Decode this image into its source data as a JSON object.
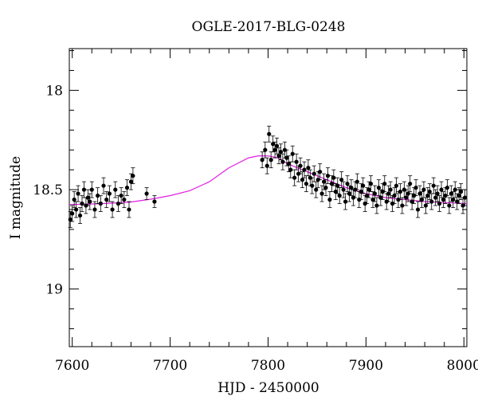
{
  "chart_data": {
    "type": "scatter",
    "title": "OGLE-2017-BLG-0248",
    "xlabel": "HJD - 2450000",
    "ylabel": "I magnitude",
    "xlim": [
      7597,
      8003
    ],
    "ylim": [
      19.29,
      17.79
    ],
    "y_inverted": true,
    "x_ticks": [
      7600,
      7700,
      7800,
      7900,
      8000
    ],
    "y_ticks": [
      18,
      18.5,
      19
    ],
    "grid": false,
    "colors": {
      "points": "#000000",
      "model": "#e020e0"
    },
    "series": [
      {
        "kind": "points_with_errorbars",
        "x": [
          7598,
          7600,
          7602,
          7604,
          7606,
          7608,
          7610,
          7612,
          7614,
          7616,
          7618,
          7620,
          7623,
          7626,
          7629,
          7632,
          7635,
          7638,
          7641,
          7644,
          7647,
          7650,
          7653,
          7656,
          7658,
          7660,
          7662,
          7676,
          7684,
          7794,
          7797,
          7799,
          7801,
          7803,
          7805,
          7807,
          7809,
          7811,
          7813,
          7815,
          7817,
          7819,
          7821,
          7823,
          7825,
          7827,
          7829,
          7831,
          7833,
          7835,
          7837,
          7839,
          7841,
          7843,
          7845,
          7847,
          7849,
          7851,
          7853,
          7855,
          7857,
          7859,
          7861,
          7863,
          7865,
          7867,
          7869,
          7871,
          7873,
          7875,
          7877,
          7879,
          7881,
          7883,
          7885,
          7887,
          7889,
          7891,
          7893,
          7895,
          7897,
          7899,
          7901,
          7903,
          7905,
          7907,
          7909,
          7911,
          7913,
          7915,
          7917,
          7919,
          7921,
          7923,
          7925,
          7927,
          7929,
          7931,
          7933,
          7935,
          7937,
          7939,
          7941,
          7943,
          7945,
          7947,
          7949,
          7951,
          7953,
          7955,
          7957,
          7959,
          7961,
          7963,
          7965,
          7967,
          7969,
          7971,
          7973,
          7975,
          7977,
          7979,
          7981,
          7983,
          7985,
          7987,
          7989,
          7991,
          7993,
          7995,
          7997,
          7999,
          8001
        ],
        "y": [
          18.65,
          18.62,
          18.55,
          18.6,
          18.52,
          18.63,
          18.57,
          18.5,
          18.58,
          18.54,
          18.56,
          18.5,
          18.6,
          18.53,
          18.57,
          18.48,
          18.55,
          18.52,
          18.6,
          18.5,
          18.57,
          18.53,
          18.55,
          18.49,
          18.6,
          18.46,
          18.43,
          18.52,
          18.56,
          18.35,
          18.3,
          18.38,
          18.22,
          18.35,
          18.27,
          18.3,
          18.28,
          18.33,
          18.31,
          18.36,
          18.3,
          18.34,
          18.37,
          18.4,
          18.32,
          18.44,
          18.36,
          18.42,
          18.38,
          18.45,
          18.4,
          18.47,
          18.39,
          18.44,
          18.48,
          18.42,
          18.5,
          18.45,
          18.41,
          18.52,
          18.46,
          18.49,
          18.43,
          18.55,
          18.47,
          18.44,
          18.51,
          18.48,
          18.53,
          18.45,
          18.5,
          18.56,
          18.47,
          18.52,
          18.49,
          18.54,
          18.5,
          18.46,
          18.55,
          18.51,
          18.48,
          18.57,
          18.53,
          18.5,
          18.47,
          18.55,
          18.52,
          18.58,
          18.49,
          18.54,
          18.51,
          18.47,
          18.56,
          18.52,
          18.5,
          18.57,
          18.53,
          18.48,
          18.55,
          18.51,
          18.58,
          18.5,
          18.54,
          18.52,
          18.47,
          18.56,
          18.53,
          18.49,
          18.6,
          18.52,
          18.55,
          18.5,
          18.58,
          18.53,
          18.51,
          18.56,
          18.48,
          18.54,
          18.52,
          18.57,
          18.5,
          18.55,
          18.53,
          18.49,
          18.58,
          18.52,
          18.55,
          18.5,
          18.56,
          18.53,
          18.51,
          18.58,
          18.54
        ],
        "err": [
          0.04,
          0.04,
          0.04,
          0.04,
          0.04,
          0.04,
          0.04,
          0.04,
          0.04,
          0.04,
          0.04,
          0.04,
          0.04,
          0.04,
          0.04,
          0.04,
          0.04,
          0.04,
          0.04,
          0.04,
          0.04,
          0.04,
          0.04,
          0.04,
          0.04,
          0.04,
          0.04,
          0.03,
          0.03,
          0.04,
          0.04,
          0.04,
          0.04,
          0.04,
          0.04,
          0.04,
          0.04,
          0.04,
          0.04,
          0.04,
          0.04,
          0.04,
          0.04,
          0.04,
          0.04,
          0.04,
          0.04,
          0.04,
          0.04,
          0.04,
          0.04,
          0.04,
          0.04,
          0.04,
          0.04,
          0.04,
          0.04,
          0.04,
          0.04,
          0.04,
          0.04,
          0.04,
          0.04,
          0.04,
          0.04,
          0.04,
          0.04,
          0.04,
          0.04,
          0.04,
          0.04,
          0.04,
          0.04,
          0.04,
          0.04,
          0.04,
          0.04,
          0.04,
          0.04,
          0.04,
          0.04,
          0.04,
          0.04,
          0.04,
          0.04,
          0.04,
          0.04,
          0.04,
          0.04,
          0.04,
          0.04,
          0.04,
          0.04,
          0.04,
          0.04,
          0.04,
          0.04,
          0.04,
          0.04,
          0.04,
          0.04,
          0.04,
          0.04,
          0.04,
          0.04,
          0.04,
          0.04,
          0.04,
          0.04,
          0.04,
          0.04,
          0.04,
          0.04,
          0.04,
          0.04,
          0.04,
          0.04,
          0.04,
          0.04,
          0.04,
          0.04,
          0.04,
          0.04,
          0.04,
          0.04,
          0.04,
          0.04,
          0.04,
          0.04,
          0.04,
          0.04,
          0.04,
          0.04
        ]
      },
      {
        "kind": "model_curve",
        "x": [
          7597,
          7620,
          7640,
          7660,
          7680,
          7700,
          7720,
          7740,
          7760,
          7780,
          7790,
          7800,
          7810,
          7820,
          7840,
          7860,
          7880,
          7900,
          7920,
          7940,
          7960,
          7980,
          8003
        ],
        "y": [
          18.575,
          18.572,
          18.568,
          18.562,
          18.548,
          18.53,
          18.505,
          18.46,
          18.39,
          18.34,
          18.33,
          18.33,
          18.34,
          18.37,
          18.41,
          18.45,
          18.49,
          18.52,
          18.54,
          18.55,
          18.56,
          18.565,
          18.57
        ]
      }
    ]
  }
}
